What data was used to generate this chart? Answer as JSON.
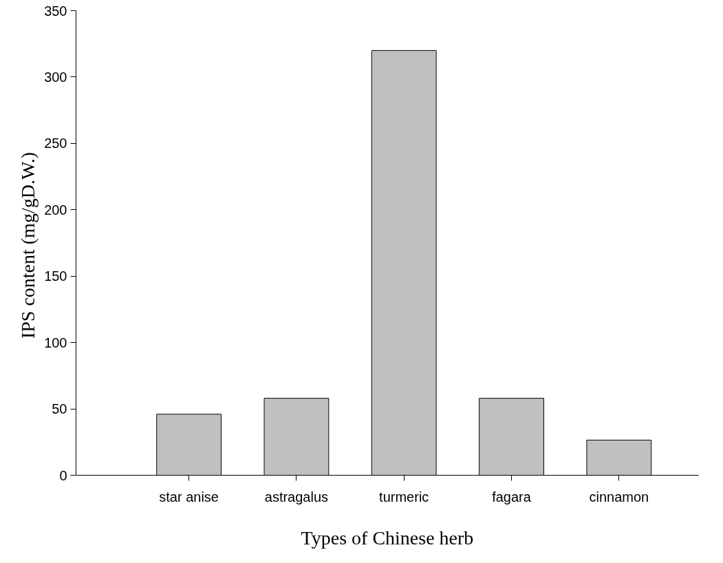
{
  "chart_data": {
    "type": "bar",
    "xlabel": "Types of Chinese herb",
    "ylabel": "IPS  content (mg/gD.W.)",
    "categories": [
      "star anise",
      "astragalus",
      "turmeric",
      "fagara",
      "cinnamon"
    ],
    "values": [
      46,
      58,
      320,
      58,
      26.5
    ],
    "color": "#c0c0c0",
    "ylim": [
      0,
      350
    ],
    "yticks": [
      0,
      50,
      100,
      150,
      200,
      250,
      300,
      350
    ],
    "grid": false
  }
}
